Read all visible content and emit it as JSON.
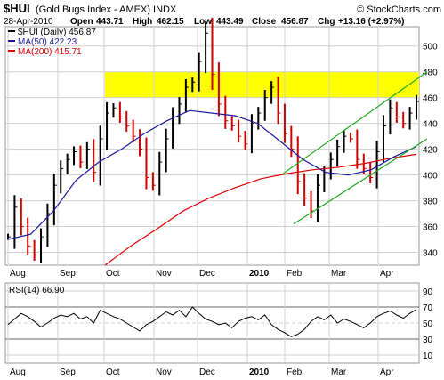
{
  "header": {
    "symbol": "$HUI",
    "name": "(Gold Bugs Index - AMEX) INDX",
    "watermark": "© StockCharts.com",
    "date": "28-Apr-2010",
    "open_label": "Open",
    "open": "443.71",
    "high_label": "High",
    "high": "462.15",
    "low_label": "Low",
    "low": "443.49",
    "close_label": "Close",
    "close": "456.87",
    "chg_label": "Chg",
    "chg": "+13.16 (+2.97%)"
  },
  "colors": {
    "price": "#000000",
    "down_bar": "#cc0000",
    "up_bar": "#000000",
    "ma50": "#1a1aa0",
    "ma200": "#dd0000",
    "channel": "#22aa22",
    "resistance_band": "#ffff00",
    "grid": "#cfcfcf",
    "rsi_line": "#000000"
  },
  "chart_data": [
    {
      "type": "line",
      "title": "$HUI (Daily) 456.87",
      "legend_placement": "top-left",
      "grid": true,
      "series": [
        {
          "name": "$HUI (Daily)",
          "legend": "$HUI (Daily) 456.87",
          "color": "#000000",
          "points": [
            [
              "Aug",
              352
            ],
            [
              "Aug",
              375
            ],
            [
              "Aug",
              360
            ],
            [
              "Aug",
              345
            ],
            [
              "Aug",
              338
            ],
            [
              "Aug",
              352
            ],
            [
              "Sep",
              370
            ],
            [
              "Sep",
              392
            ],
            [
              "Sep",
              405
            ],
            [
              "Sep",
              412
            ],
            [
              "Sep",
              418
            ],
            [
              "Sep",
              410
            ],
            [
              "Sep",
              420
            ],
            [
              "Sep",
              402
            ],
            [
              "Oct",
              428
            ],
            [
              "Oct",
              448
            ],
            [
              "Oct",
              452
            ],
            [
              "Oct",
              445
            ],
            [
              "Oct",
              438
            ],
            [
              "Oct",
              430
            ],
            [
              "Oct",
              420
            ],
            [
              "Nov",
              398
            ],
            [
              "Nov",
              392
            ],
            [
              "Nov",
              410
            ],
            [
              "Nov",
              428
            ],
            [
              "Nov",
              445
            ],
            [
              "Nov",
              455
            ],
            [
              "Nov",
              468
            ],
            [
              "Nov",
              472
            ],
            [
              "Dec",
              488
            ],
            [
              "Dec",
              510
            ],
            [
              "Dec",
              478
            ],
            [
              "Dec",
              455
            ],
            [
              "Dec",
              442
            ],
            [
              "Dec",
              438
            ],
            [
              "Dec",
              430
            ],
            [
              "Dec",
              424
            ],
            [
              "Dec",
              440
            ],
            [
              "2010",
              448
            ],
            [
              "2010",
              460
            ],
            [
              "2010",
              468
            ],
            [
              "2010",
              448
            ],
            [
              "2010",
              432
            ],
            [
              "2010",
              420
            ],
            [
              "Feb",
              395
            ],
            [
              "Feb",
              382
            ],
            [
              "Feb",
              372
            ],
            [
              "Feb",
              392
            ],
            [
              "Feb",
              402
            ],
            [
              "Feb",
              412
            ],
            [
              "Mar",
              422
            ],
            [
              "Mar",
              430
            ],
            [
              "Mar",
              428
            ],
            [
              "Mar",
              412
            ],
            [
              "Mar",
              405
            ],
            [
              "Mar",
              398
            ],
            [
              "Apr",
              418
            ],
            [
              "Apr",
              438
            ],
            [
              "Apr",
              452
            ],
            [
              "Apr",
              445
            ],
            [
              "Apr",
              440
            ],
            [
              "Apr",
              448
            ],
            [
              "Apr",
              457
            ]
          ]
        },
        {
          "name": "MA(50)",
          "legend": "MA(50) 422.23",
          "color": "#1a1aa0",
          "points": [
            [
              "Aug",
              350
            ],
            [
              "Sep",
              354
            ],
            [
              "Sep",
              372
            ],
            [
              "Oct",
              396
            ],
            [
              "Oct",
              410
            ],
            [
              "Nov",
              420
            ],
            [
              "Nov",
              432
            ],
            [
              "Dec",
              442
            ],
            [
              "Dec",
              450
            ],
            [
              "Dec",
              448
            ],
            [
              "2010",
              446
            ],
            [
              "2010",
              440
            ],
            [
              "Feb",
              426
            ],
            [
              "Feb",
              412
            ],
            [
              "Mar",
              402
            ],
            [
              "Mar",
              400
            ],
            [
              "Apr",
              404
            ],
            [
              "Apr",
              414
            ],
            [
              "Apr",
              422
            ]
          ]
        },
        {
          "name": "MA(200)",
          "legend": "MA(200) 415.71",
          "color": "#dd0000",
          "points": [
            [
              "Oct",
              330
            ],
            [
              "Nov",
              345
            ],
            [
              "Nov",
              358
            ],
            [
              "Dec",
              372
            ],
            [
              "Dec",
              382
            ],
            [
              "2010",
              390
            ],
            [
              "Feb",
              397
            ],
            [
              "Feb",
              401
            ],
            [
              "Mar",
              404
            ],
            [
              "Mar",
              406
            ],
            [
              "Apr",
              409
            ],
            [
              "Apr",
              413
            ],
            [
              "Apr",
              416
            ]
          ]
        }
      ],
      "annotations": {
        "resistance_band": [
          460,
          480
        ],
        "upper_channel": [
          [
            "Feb",
            401
          ],
          [
            "Apr",
            475
          ]
        ],
        "lower_channel": [
          [
            "Feb",
            362
          ],
          [
            "Apr",
            425
          ]
        ]
      },
      "x_ticks": [
        "Aug",
        "Sep",
        "Oct",
        "Nov",
        "Dec",
        "2010",
        "Feb",
        "Mar",
        "Apr"
      ],
      "y_ticks": [
        340,
        360,
        380,
        400,
        420,
        440,
        460,
        480,
        500
      ],
      "ylim": [
        330,
        515
      ]
    },
    {
      "type": "line",
      "title": "RSI(14) 66.90",
      "legend_placement": "top-left",
      "grid": true,
      "series": [
        {
          "name": "RSI(14)",
          "legend": "RSI(14) 66.90",
          "color": "#000000",
          "values": [
            48,
            55,
            62,
            58,
            52,
            45,
            50,
            56,
            60,
            58,
            62,
            55,
            58,
            50,
            66,
            62,
            58,
            55,
            50,
            45,
            40,
            48,
            52,
            58,
            64,
            60,
            66,
            58,
            70,
            62,
            55,
            52,
            48,
            50,
            44,
            52,
            56,
            58,
            54,
            60,
            48,
            42,
            38,
            33,
            36,
            42,
            52,
            58,
            54,
            60,
            50,
            55,
            52,
            48,
            44,
            50,
            58,
            62,
            65,
            60,
            56,
            62,
            66.9
          ]
        }
      ],
      "y_ticks": [
        10,
        30,
        50,
        70,
        90
      ],
      "ref_lines": [
        30,
        70
      ],
      "ylim": [
        0,
        100
      ],
      "x_ticks": [
        "Aug",
        "Sep",
        "Oct",
        "Nov",
        "Dec",
        "2010",
        "Feb",
        "Mar",
        "Apr"
      ]
    }
  ]
}
